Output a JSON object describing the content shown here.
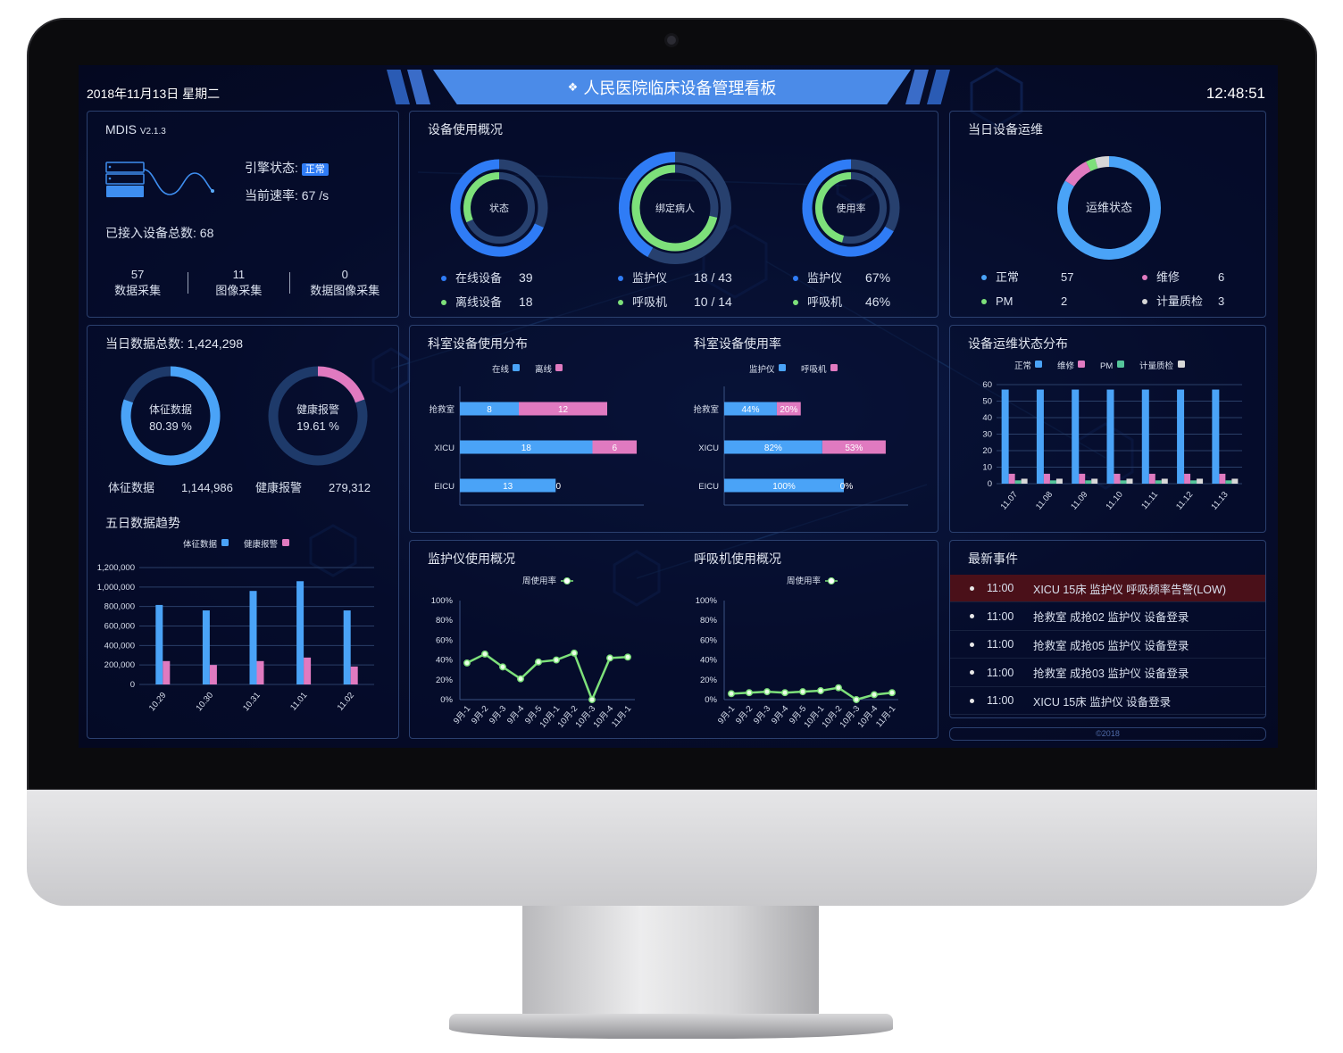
{
  "header": {
    "date": "2018年11月13日 星期二",
    "title": "人民医院临床设备管理看板",
    "time": "12:48:51",
    "title_icon": "diamond-cluster-icon"
  },
  "system": {
    "name": "MDIS",
    "version": "V2.1.3",
    "engine_label": "引擎状态:",
    "engine_status": "正常",
    "rate_label": "当前速率:",
    "rate_value": "67 /s",
    "devices_label": "已接入设备总数:",
    "devices_value": "68",
    "stats": [
      {
        "value": "57",
        "label": "数据采集"
      },
      {
        "value": "11",
        "label": "图像采集"
      },
      {
        "value": "0",
        "label": "数据图像采集"
      }
    ]
  },
  "usage": {
    "title": "设备使用概况",
    "donuts": [
      {
        "center": "状态",
        "outer_fraction": 0.684,
        "inner_fraction": 0.316,
        "rows": [
          {
            "label": "在线设备",
            "value": "39"
          },
          {
            "label": "离线设备",
            "value": "18"
          }
        ]
      },
      {
        "center": "绑定病人",
        "outer_fraction": 0.419,
        "inner_fraction": 0.714,
        "rows": [
          {
            "label": "监护仪",
            "value": "18 / 43"
          },
          {
            "label": "呼吸机",
            "value": "10 / 14"
          }
        ]
      },
      {
        "center": "使用率",
        "outer_fraction": 0.67,
        "inner_fraction": 0.46,
        "rows": [
          {
            "label": "监护仪",
            "value": "67%"
          },
          {
            "label": "呼吸机",
            "value": "46%"
          }
        ]
      }
    ],
    "colors": {
      "outer": "#2f7cf6",
      "inner": "#7de07a",
      "track": "#27406e"
    }
  },
  "maintenance": {
    "title": "当日设备运维",
    "center": "运维状态",
    "items": [
      {
        "label": "正常",
        "value": "57",
        "color": "#4aa3f7"
      },
      {
        "label": "维修",
        "value": "6",
        "color": "#e07ac0"
      },
      {
        "label": "PM",
        "value": "2",
        "color": "#7de07a"
      },
      {
        "label": "计量质检",
        "value": "3",
        "color": "#d6d6d6"
      }
    ]
  },
  "data_total": {
    "title": "当日数据总数:",
    "value": "1,424,298",
    "donuts": [
      {
        "center": "体征数据",
        "percent": "80.39 %",
        "fraction": 0.8039,
        "label": "体征数据",
        "value": "1,144,986",
        "color": "#4aa3f7"
      },
      {
        "center": "健康报警",
        "percent": "19.61 %",
        "fraction": 0.1961,
        "label": "健康报警",
        "value": "279,312",
        "color": "#e07ac0"
      }
    ],
    "track": "#1e3a6a"
  },
  "titles": {
    "trend": "五日数据趋势",
    "dept_dist": "科室设备使用分布",
    "dept_rate": "科室设备使用率",
    "maint_dist": "设备运维状态分布",
    "monitor": "监护仪使用概况",
    "vent": "呼吸机使用概况",
    "events": "最新事件"
  },
  "events": [
    {
      "time": "11:00",
      "text": "XICU 15床 监护仪 呼吸频率告警(LOW)",
      "alert": true
    },
    {
      "time": "11:00",
      "text": "抢救室 成抢02 监护仪 设备登录",
      "alert": false
    },
    {
      "time": "11:00",
      "text": "抢救室 成抢05 监护仪 设备登录",
      "alert": false
    },
    {
      "time": "11:00",
      "text": "抢救室 成抢03 监护仪 设备登录",
      "alert": false
    },
    {
      "time": "11:00",
      "text": "XICU 15床 监护仪 设备登录",
      "alert": false
    }
  ],
  "footer": "©2018",
  "chart_data": [
    {
      "id": "trend",
      "type": "bar",
      "categories": [
        "10.29",
        "10.30",
        "10.31",
        "11.01",
        "11.02"
      ],
      "series": [
        {
          "name": "体征数据",
          "color": "#4aa3f7",
          "values": [
            816000,
            760000,
            960000,
            1060000,
            760000
          ]
        },
        {
          "name": "健康报警",
          "color": "#e07ac0",
          "values": [
            240000,
            200000,
            240000,
            276000,
            184000
          ]
        }
      ],
      "yticks": [
        "0",
        "200,000",
        "400,000",
        "600,000",
        "800,000",
        "1,000,000",
        "1,200,000"
      ],
      "ylim": [
        0,
        1200000
      ],
      "grid": true,
      "legend": "top"
    },
    {
      "id": "dept_dist",
      "type": "bar",
      "orientation": "horizontal",
      "stacked": true,
      "categories": [
        "抢救室",
        "XICU",
        "EICU"
      ],
      "series": [
        {
          "name": "在线",
          "color": "#4aa3f7",
          "values": [
            8,
            18,
            13
          ]
        },
        {
          "name": "离线",
          "color": "#e07ac0",
          "values": [
            12,
            6,
            0
          ]
        }
      ],
      "legend": "top"
    },
    {
      "id": "dept_rate",
      "type": "bar",
      "orientation": "horizontal",
      "stacked": true,
      "categories": [
        "抢救室",
        "XICU",
        "EICU"
      ],
      "series": [
        {
          "name": "监护仪",
          "color": "#4aa3f7",
          "values": [
            44,
            82,
            100
          ],
          "labels": [
            "44%",
            "82%",
            "100%"
          ]
        },
        {
          "name": "呼吸机",
          "color": "#e07ac0",
          "values": [
            20,
            53,
            0
          ],
          "labels": [
            "20%",
            "53%",
            "0%"
          ]
        }
      ],
      "legend": "top"
    },
    {
      "id": "maint_dist",
      "type": "bar",
      "categories": [
        "11.07",
        "11.08",
        "11.09",
        "11.10",
        "11.11",
        "11.12",
        "11.13"
      ],
      "series": [
        {
          "name": "正常",
          "color": "#4aa3f7",
          "values": [
            57,
            57,
            57,
            57,
            57,
            57,
            57
          ]
        },
        {
          "name": "维修",
          "color": "#e07ac0",
          "values": [
            6,
            6,
            6,
            6,
            6,
            6,
            6
          ]
        },
        {
          "name": "PM",
          "color": "#55c59a",
          "values": [
            2,
            2,
            2,
            2,
            2,
            2,
            2
          ]
        },
        {
          "name": "计量质检",
          "color": "#d8d8d8",
          "values": [
            3,
            3,
            3,
            3,
            3,
            3,
            3
          ]
        }
      ],
      "yticks": [
        "0",
        "10",
        "20",
        "30",
        "40",
        "50",
        "60"
      ],
      "ylim": [
        0,
        60
      ],
      "grid": true,
      "legend": "top"
    },
    {
      "id": "monitor",
      "type": "line",
      "categories": [
        "9月-1",
        "9月-2",
        "9月-3",
        "9月-4",
        "9月-5",
        "10月-1",
        "10月-2",
        "10月-3",
        "10月-4",
        "11月-1"
      ],
      "series": [
        {
          "name": "周使用率",
          "color": "#7de07a",
          "values": [
            37,
            46,
            33,
            21,
            38,
            40,
            47,
            0,
            42,
            43
          ]
        }
      ],
      "yticks": [
        "0%",
        "20%",
        "40%",
        "60%",
        "80%",
        "100%"
      ],
      "ylim": [
        0,
        100
      ],
      "legend": "top"
    },
    {
      "id": "vent",
      "type": "line",
      "categories": [
        "9月-1",
        "9月-2",
        "9月-3",
        "9月-4",
        "9月-5",
        "10月-1",
        "10月-2",
        "10月-3",
        "10月-4",
        "11月-1"
      ],
      "series": [
        {
          "name": "周使用率",
          "color": "#7de07a",
          "values": [
            6,
            7,
            8,
            7,
            8,
            9,
            12,
            0,
            5,
            7
          ]
        }
      ],
      "yticks": [
        "0%",
        "20%",
        "40%",
        "60%",
        "80%",
        "100%"
      ],
      "ylim": [
        0,
        100
      ],
      "legend": "top"
    }
  ]
}
